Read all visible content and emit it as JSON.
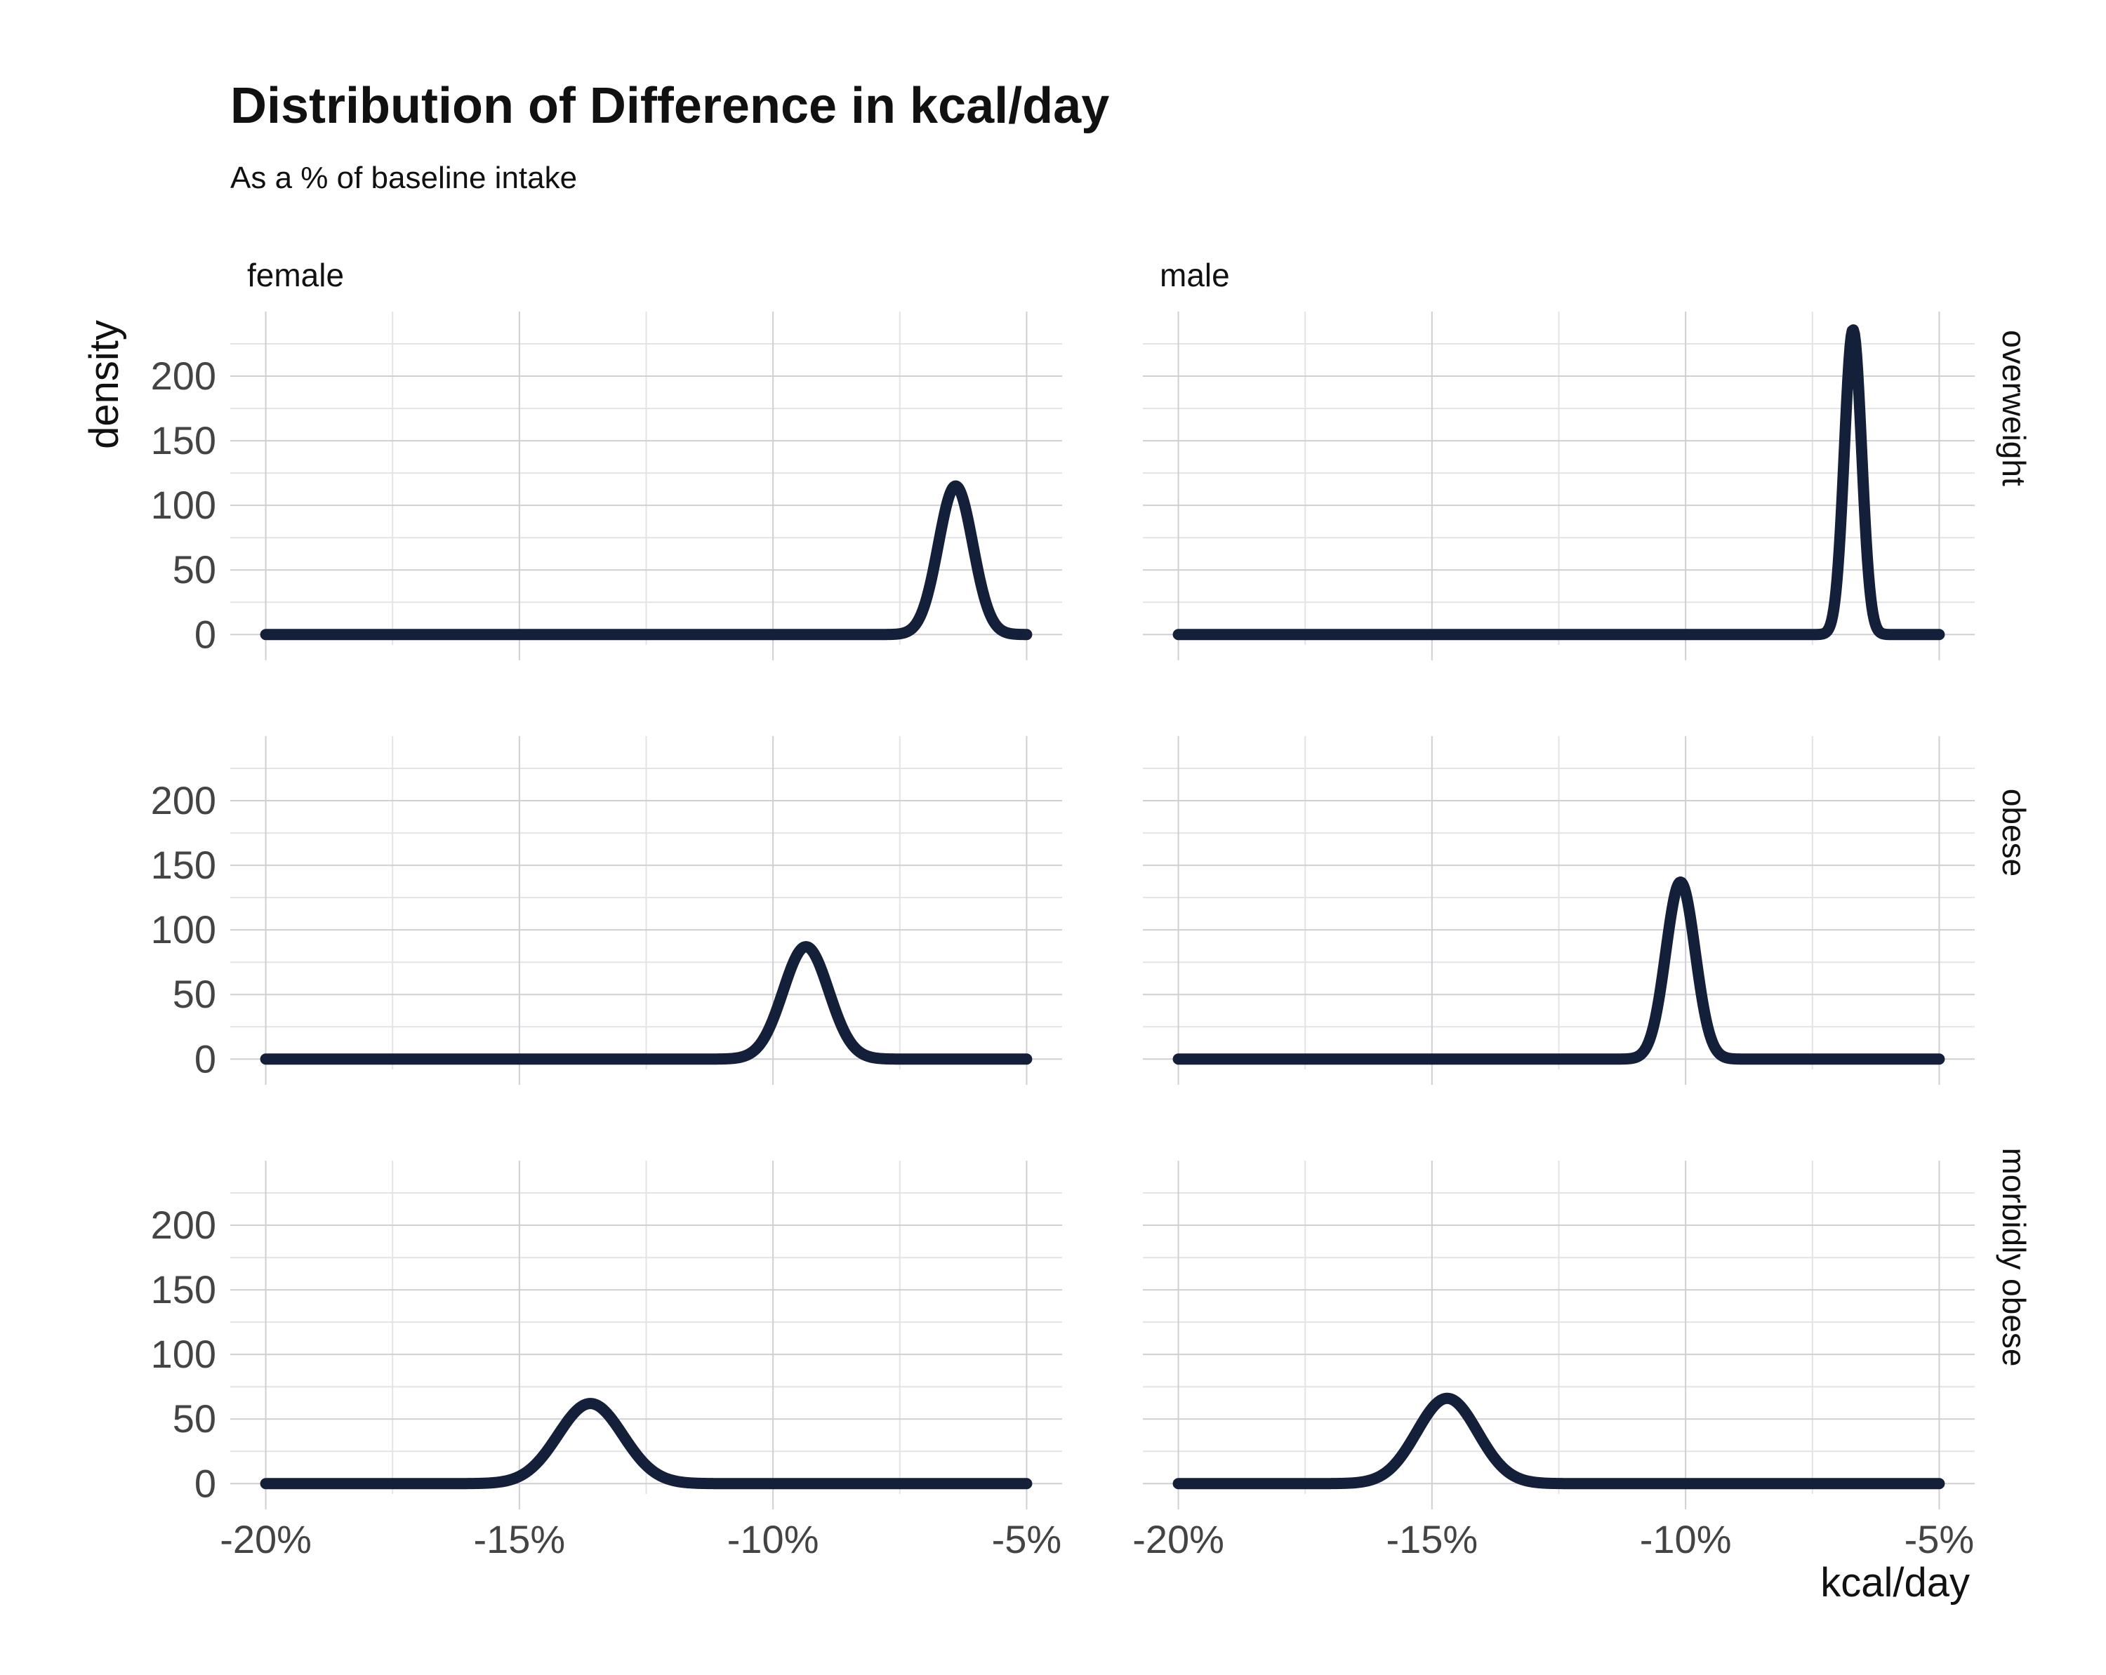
{
  "chart_data": {
    "type": "line",
    "title": "Distribution of Difference in kcal/day",
    "subtitle": "As a % of baseline intake",
    "xlabel": "kcal/day",
    "ylabel": "density",
    "xlim": [
      -20.7,
      -4.3
    ],
    "ylim": [
      -8,
      250
    ],
    "x_ticks": [
      -20,
      -15,
      -10,
      -5
    ],
    "x_tick_labels": [
      "-20%",
      "-15%",
      "-10%",
      "-5%"
    ],
    "y_ticks": [
      0,
      50,
      100,
      150,
      200
    ],
    "y_tick_labels": [
      "0",
      "50",
      "100",
      "150",
      "200"
    ],
    "grid": true,
    "line_color": "#14203a",
    "columns": [
      "female",
      "male"
    ],
    "rows": [
      "overweight",
      "obese",
      "morbidly obese"
    ],
    "panels": [
      {
        "column": "female",
        "row": "overweight",
        "peak_x": -6.4,
        "peak_density": 115,
        "sd": 0.34
      },
      {
        "column": "male",
        "row": "overweight",
        "peak_x": -6.7,
        "peak_density": 236,
        "sd": 0.17
      },
      {
        "column": "female",
        "row": "obese",
        "peak_x": -9.35,
        "peak_density": 87,
        "sd": 0.45
      },
      {
        "column": "male",
        "row": "obese",
        "peak_x": -10.1,
        "peak_density": 137,
        "sd": 0.29
      },
      {
        "column": "female",
        "row": "morbidly obese",
        "peak_x": -13.6,
        "peak_density": 62,
        "sd": 0.64
      },
      {
        "column": "male",
        "row": "morbidly obese",
        "peak_x": -14.7,
        "peak_density": 66,
        "sd": 0.6
      }
    ]
  }
}
